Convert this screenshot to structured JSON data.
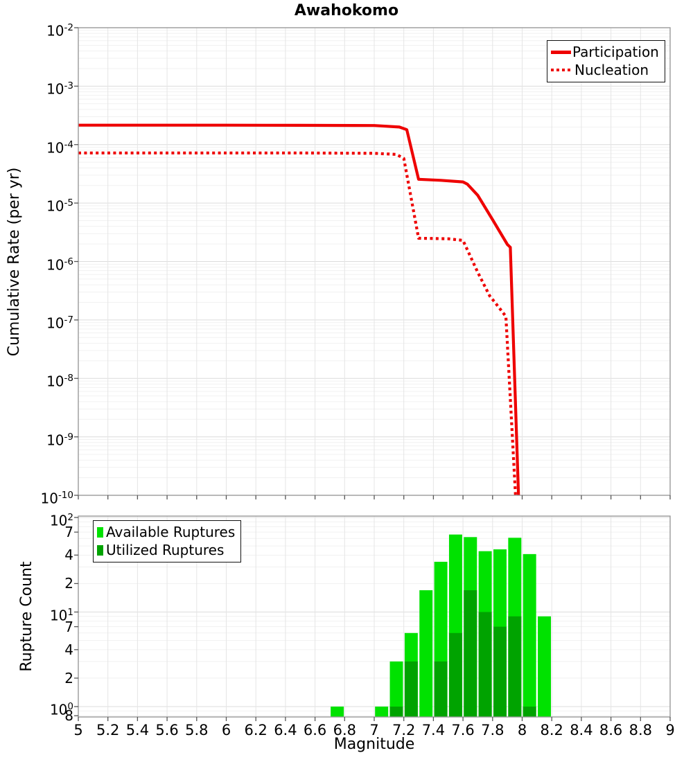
{
  "title": "Awahokomo",
  "colors": {
    "line_red": "#EE0000",
    "available_green": "#00E200",
    "utilized_green": "#00A300",
    "grid_major": "#dcdcdc",
    "grid_minor": "#f1f1f1",
    "grid_vertical": "#e5e5e5",
    "frame": "#999999",
    "tick": "#555555"
  },
  "x_ticks": [
    {
      "value": 5,
      "label": "5"
    },
    {
      "value": 5.2,
      "label": "5.2"
    },
    {
      "value": 5.4,
      "label": "5.4"
    },
    {
      "value": 5.6,
      "label": "5.6"
    },
    {
      "value": 5.8,
      "label": "5.8"
    },
    {
      "value": 6,
      "label": "6"
    },
    {
      "value": 6.2,
      "label": "6.2"
    },
    {
      "value": 6.4,
      "label": "6.4"
    },
    {
      "value": 6.6,
      "label": "6.6"
    },
    {
      "value": 6.8,
      "label": "6.8"
    },
    {
      "value": 7,
      "label": "7"
    },
    {
      "value": 7.2,
      "label": "7.2"
    },
    {
      "value": 7.4,
      "label": "7.4"
    },
    {
      "value": 7.6,
      "label": "7.6"
    },
    {
      "value": 7.8,
      "label": "7.8"
    },
    {
      "value": 8,
      "label": "8"
    },
    {
      "value": 8.2,
      "label": "8.2"
    },
    {
      "value": 8.4,
      "label": "8.4"
    },
    {
      "value": 8.6,
      "label": "8.6"
    },
    {
      "value": 8.8,
      "label": "8.8"
    },
    {
      "value": 9,
      "label": "9"
    }
  ],
  "chart_data": [
    {
      "id": "cumulative-rate-plot",
      "type": "line",
      "title": "Awahokomo",
      "xlabel": "Magnitude",
      "ylabel": "Cumulative Rate (per yr)",
      "xlim": [
        5,
        9
      ],
      "ylim": [
        1e-10,
        0.01
      ],
      "y_scale": "log",
      "grid": true,
      "y_tick_exponents": [
        -2,
        -3,
        -4,
        -5,
        -6,
        -7,
        -8,
        -9,
        -10
      ],
      "legend_position": "top-right",
      "series": [
        {
          "name": "Participation",
          "line_style": "solid",
          "color": "#EE0000",
          "points": [
            [
              5.0,
              0.000215
            ],
            [
              6.0,
              0.000215
            ],
            [
              6.5,
              0.000214
            ],
            [
              7.0,
              0.000212
            ],
            [
              7.17,
              0.0002
            ],
            [
              7.22,
              0.00018
            ],
            [
              7.3,
              2.55e-05
            ],
            [
              7.45,
              2.45e-05
            ],
            [
              7.6,
              2.3e-05
            ],
            [
              7.63,
              2.1e-05
            ],
            [
              7.7,
              1.35e-05
            ],
            [
              7.8,
              5.2e-06
            ],
            [
              7.9,
              1.95e-06
            ],
            [
              7.92,
              1.75e-06
            ],
            [
              7.975,
              1e-10
            ]
          ]
        },
        {
          "name": "Nucleation",
          "line_style": "dotted",
          "color": "#EE0000",
          "points": [
            [
              5.0,
              7.2e-05
            ],
            [
              6.0,
              7.2e-05
            ],
            [
              6.5,
              7.2e-05
            ],
            [
              7.0,
              7.1e-05
            ],
            [
              7.15,
              6.8e-05
            ],
            [
              7.2,
              5.8e-05
            ],
            [
              7.3,
              2.5e-06
            ],
            [
              7.5,
              2.45e-06
            ],
            [
              7.6,
              2.3e-06
            ],
            [
              7.7,
              6.5e-07
            ],
            [
              7.78,
              2.6e-07
            ],
            [
              7.85,
              1.55e-07
            ],
            [
              7.89,
              1.15e-07
            ],
            [
              7.955,
              1e-10
            ]
          ]
        }
      ]
    },
    {
      "id": "rupture-count-plot",
      "type": "bar",
      "xlabel": "Magnitude",
      "ylabel": "Rupture Count",
      "xlim": [
        5,
        9
      ],
      "ylim": [
        0.78,
        100
      ],
      "y_scale": "log",
      "grid": true,
      "bin_width": 0.1,
      "y_major_tick_exponents": [
        2,
        1,
        0
      ],
      "y_minor_ticks": [
        {
          "value": 70,
          "label": "7"
        },
        {
          "value": 40,
          "label": "4"
        },
        {
          "value": 20,
          "label": "2"
        },
        {
          "value": 7,
          "label": "7"
        },
        {
          "value": 4,
          "label": "4"
        },
        {
          "value": 2,
          "label": "2"
        },
        {
          "value": 0.8,
          "label": "8"
        }
      ],
      "legend_position": "top-left",
      "series": [
        {
          "name": "Available Ruptures",
          "color": "#00E200",
          "bins": [
            [
              6.7,
              1
            ],
            [
              7.0,
              1
            ],
            [
              7.1,
              3
            ],
            [
              7.2,
              6
            ],
            [
              7.3,
              17
            ],
            [
              7.4,
              34
            ],
            [
              7.5,
              66
            ],
            [
              7.6,
              62
            ],
            [
              7.7,
              44
            ],
            [
              7.8,
              46
            ],
            [
              7.9,
              61
            ],
            [
              8.0,
              41
            ],
            [
              8.1,
              9
            ]
          ]
        },
        {
          "name": "Utilized Ruptures",
          "color": "#00A300",
          "bins": [
            [
              7.1,
              1
            ],
            [
              7.2,
              3
            ],
            [
              7.4,
              3
            ],
            [
              7.5,
              6
            ],
            [
              7.6,
              17
            ],
            [
              7.7,
              10
            ],
            [
              7.8,
              7
            ],
            [
              7.9,
              9
            ],
            [
              8.0,
              1
            ]
          ]
        }
      ]
    }
  ]
}
